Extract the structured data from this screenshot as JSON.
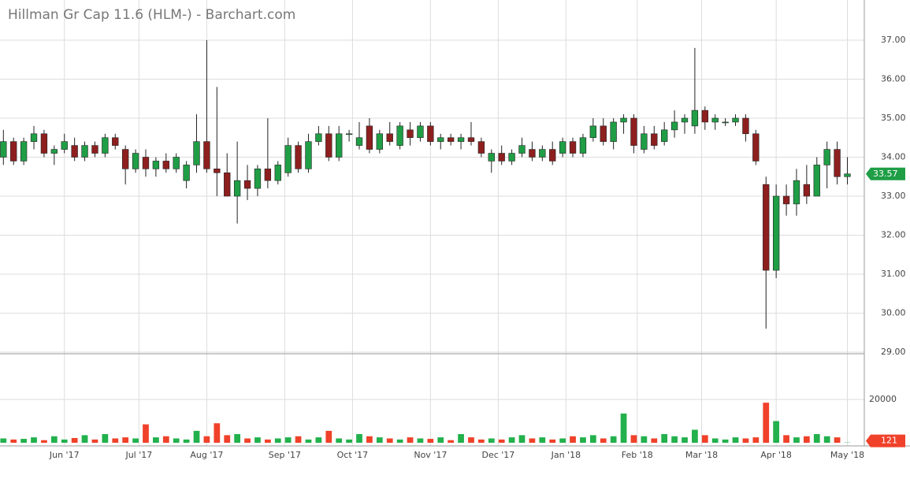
{
  "chart_data": {
    "type": "candlestick",
    "title": "Hillman Gr Cap 11.6 (HLM-) - Barchart.com",
    "up_color": "#1f9e46",
    "down_color": "#8e1f1f",
    "volume_up_color": "#22b14c",
    "volume_down_color": "#f0412a",
    "xlim": [
      0,
      255
    ],
    "xticks": [
      {
        "value": 19,
        "label": "Jun '17"
      },
      {
        "value": 41,
        "label": "Jul '17"
      },
      {
        "value": 61,
        "label": "Aug '17"
      },
      {
        "value": 84,
        "label": "Sep '17"
      },
      {
        "value": 104,
        "label": "Oct '17"
      },
      {
        "value": 127,
        "label": "Nov '17"
      },
      {
        "value": 147,
        "label": "Dec '17"
      },
      {
        "value": 167,
        "label": "Jan '18"
      },
      {
        "value": 188,
        "label": "Feb '18"
      },
      {
        "value": 207,
        "label": "Mar '18"
      },
      {
        "value": 229,
        "label": "Apr '18"
      },
      {
        "value": 250,
        "label": "May '18"
      }
    ],
    "ylim": [
      29,
      38.03
    ],
    "yticks": [
      {
        "value": 29,
        "label": "29.00"
      },
      {
        "value": 30,
        "label": "30.00"
      },
      {
        "value": 31,
        "label": "31.00"
      },
      {
        "value": 32,
        "label": "32.00"
      },
      {
        "value": 33,
        "label": "33.00"
      },
      {
        "value": 34,
        "label": "34.00"
      },
      {
        "value": 35,
        "label": "35.00"
      },
      {
        "value": 36,
        "label": "36.00"
      },
      {
        "value": 37,
        "label": "37.00"
      }
    ],
    "volume_ylim": [
      0,
      40000
    ],
    "volume_yticks": [
      20000
    ],
    "x": [
      1,
      4,
      7,
      10,
      13,
      16,
      19,
      22,
      25,
      28,
      31,
      34,
      37,
      40,
      43,
      46,
      49,
      52,
      55,
      58,
      61,
      64,
      67,
      70,
      73,
      76,
      79,
      82,
      85,
      88,
      91,
      94,
      97,
      100,
      103,
      106,
      109,
      112,
      115,
      118,
      121,
      124,
      127,
      130,
      133,
      136,
      139,
      142,
      145,
      148,
      151,
      154,
      157,
      160,
      163,
      166,
      169,
      172,
      175,
      178,
      181,
      184,
      187,
      190,
      193,
      196,
      199,
      202,
      205,
      208,
      211,
      214,
      217,
      220,
      223,
      226,
      229,
      232,
      235,
      238,
      241,
      244,
      247,
      250
    ],
    "open": [
      34.0,
      34.4,
      33.9,
      34.4,
      34.6,
      34.1,
      34.2,
      34.3,
      34.0,
      34.3,
      34.1,
      34.5,
      34.2,
      33.7,
      34.0,
      33.7,
      33.9,
      33.7,
      33.4,
      33.8,
      34.4,
      33.7,
      33.6,
      33.0,
      33.4,
      33.2,
      33.7,
      33.4,
      33.6,
      34.3,
      33.7,
      34.4,
      34.6,
      34.0,
      34.6,
      34.3,
      34.8,
      34.2,
      34.6,
      34.3,
      34.7,
      34.5,
      34.8,
      34.4,
      34.5,
      34.4,
      34.5,
      34.4,
      33.9,
      34.1,
      33.9,
      34.1,
      34.2,
      34.0,
      34.2,
      34.1,
      34.4,
      34.1,
      34.5,
      34.8,
      34.4,
      34.9,
      35.0,
      34.2,
      34.6,
      34.4,
      34.7,
      34.9,
      34.8,
      35.2,
      34.9,
      34.9,
      34.9,
      35.0,
      34.6,
      33.3,
      31.1,
      33.0,
      32.8,
      33.3,
      33.0,
      33.8,
      34.2,
      33.5
    ],
    "high": [
      34.7,
      34.5,
      34.5,
      34.8,
      34.7,
      34.3,
      34.6,
      34.5,
      34.4,
      34.4,
      34.6,
      34.6,
      34.3,
      34.2,
      34.2,
      34.0,
      34.1,
      34.1,
      33.9,
      35.1,
      37.0,
      35.8,
      34.1,
      34.4,
      33.8,
      33.8,
      35.0,
      33.9,
      34.5,
      34.4,
      34.6,
      34.8,
      34.8,
      34.8,
      34.7,
      34.9,
      35.0,
      34.7,
      34.9,
      34.9,
      34.9,
      34.9,
      34.9,
      34.6,
      34.6,
      34.6,
      34.9,
      34.5,
      34.2,
      34.3,
      34.2,
      34.5,
      34.4,
      34.3,
      34.4,
      34.5,
      34.5,
      34.6,
      35.0,
      35.0,
      35.0,
      35.1,
      35.1,
      34.8,
      34.8,
      34.9,
      35.2,
      35.1,
      36.8,
      35.3,
      35.1,
      35.0,
      35.1,
      35.1,
      34.7,
      33.5,
      33.3,
      33.3,
      33.7,
      33.8,
      34.0,
      34.4,
      34.4,
      34.0
    ],
    "low": [
      33.8,
      33.8,
      33.8,
      34.2,
      34.0,
      33.8,
      34.1,
      33.9,
      33.9,
      34.0,
      34.0,
      34.2,
      33.3,
      33.6,
      33.5,
      33.5,
      33.6,
      33.6,
      33.2,
      33.6,
      33.6,
      33.0,
      33.0,
      32.3,
      32.9,
      33.0,
      33.2,
      33.3,
      33.5,
      33.6,
      33.6,
      34.3,
      33.9,
      33.9,
      34.4,
      34.2,
      34.1,
      34.1,
      34.3,
      34.2,
      34.3,
      34.4,
      34.3,
      34.2,
      34.3,
      34.2,
      34.3,
      34.0,
      33.6,
      33.8,
      33.8,
      34.0,
      33.9,
      33.9,
      33.8,
      34.0,
      34.0,
      34.0,
      34.4,
      34.3,
      34.2,
      34.6,
      34.1,
      34.1,
      34.2,
      34.3,
      34.5,
      34.6,
      34.6,
      34.7,
      34.7,
      34.8,
      34.8,
      34.4,
      33.8,
      29.6,
      30.9,
      32.5,
      32.5,
      32.8,
      33.0,
      33.2,
      33.3,
      33.3
    ],
    "close": [
      34.4,
      33.9,
      34.4,
      34.6,
      34.1,
      34.2,
      34.4,
      34.0,
      34.3,
      34.1,
      34.5,
      34.3,
      33.7,
      34.1,
      33.7,
      33.9,
      33.7,
      34.0,
      33.8,
      34.4,
      33.7,
      33.6,
      33.0,
      33.4,
      33.2,
      33.7,
      33.4,
      33.8,
      34.3,
      33.7,
      34.4,
      34.6,
      34.0,
      34.6,
      34.6,
      34.5,
      34.2,
      34.6,
      34.4,
      34.8,
      34.5,
      34.8,
      34.4,
      34.5,
      34.4,
      34.5,
      34.4,
      34.1,
      34.1,
      33.9,
      34.1,
      34.3,
      34.0,
      34.2,
      33.9,
      34.4,
      34.1,
      34.5,
      34.8,
      34.4,
      34.9,
      35.0,
      34.3,
      34.6,
      34.3,
      34.7,
      34.9,
      35.0,
      35.2,
      34.9,
      35.0,
      34.9,
      35.0,
      34.6,
      33.9,
      31.1,
      33.0,
      32.8,
      33.4,
      33.0,
      33.8,
      34.2,
      33.5,
      33.57
    ],
    "volume": [
      2000,
      1500,
      1800,
      2500,
      1200,
      3000,
      1500,
      2200,
      3500,
      1500,
      4000,
      2000,
      2500,
      2000,
      8500,
      2500,
      3000,
      2000,
      1500,
      5500,
      3000,
      9000,
      3500,
      4000,
      2000,
      2500,
      1500,
      2000,
      2500,
      3000,
      1500,
      2500,
      5500,
      2000,
      1500,
      4000,
      3000,
      2500,
      2000,
      1500,
      2500,
      2000,
      1800,
      2500,
      1200,
      4000,
      2500,
      1500,
      2000,
      1500,
      2500,
      3500,
      2000,
      2500,
      1500,
      2000,
      3000,
      2500,
      3500,
      2000,
      3000,
      13500,
      3500,
      3000,
      2000,
      4000,
      3000,
      2500,
      6000,
      3500,
      2000,
      1500,
      2500,
      2000,
      2500,
      18500,
      10000,
      3500,
      2500,
      3000,
      4000,
      3000,
      2500,
      121
    ]
  }
}
